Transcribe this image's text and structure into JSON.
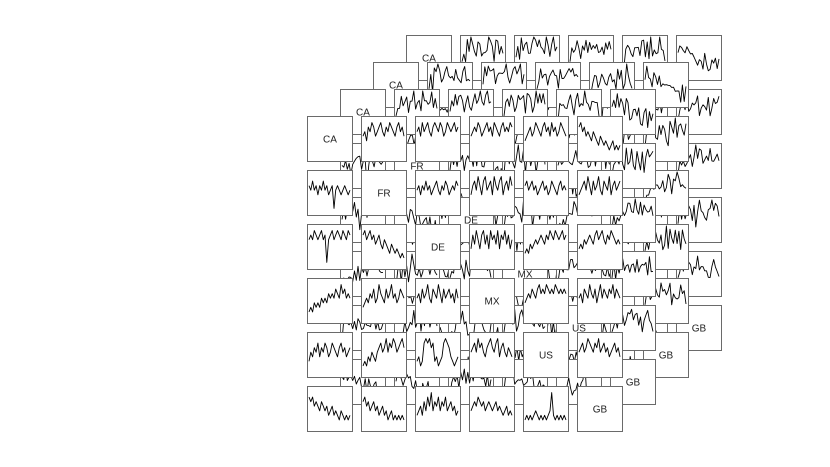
{
  "chart_data": {
    "type": "scatter-matrix",
    "description_layers": 4,
    "variables": [
      "CA",
      "FR",
      "DE",
      "MX",
      "US",
      "GB"
    ],
    "title": "",
    "xlabel": "",
    "ylabel": "",
    "grid": false,
    "legend": "none",
    "panels": {
      "CA-FR": [
        6,
        7,
        5,
        8,
        7,
        9,
        8,
        6,
        7,
        8,
        9,
        7,
        6,
        8,
        7,
        9,
        8,
        7,
        6,
        8,
        9,
        7,
        8,
        6
      ],
      "CA-DE": [
        7,
        8,
        6,
        9,
        7,
        8,
        9,
        7,
        6,
        8,
        9,
        8,
        7,
        9,
        8,
        6,
        7,
        9,
        8,
        7,
        8,
        9,
        7,
        8
      ],
      "CA-MX": [
        6,
        7,
        8,
        7,
        9,
        8,
        6,
        7,
        8,
        9,
        7,
        8,
        6,
        9,
        8,
        7,
        6,
        8,
        9,
        7,
        8,
        7,
        9,
        8
      ],
      "CA-US": [
        5,
        6,
        7,
        8,
        6,
        7,
        9,
        8,
        7,
        6,
        8,
        9,
        7,
        8,
        6,
        9,
        7,
        8,
        6,
        7,
        9,
        8,
        7,
        6
      ],
      "CA-GB": [
        8,
        9,
        7,
        8,
        6,
        7,
        6,
        5,
        7,
        6,
        5,
        4,
        6,
        5,
        4,
        5,
        4,
        3,
        4,
        5,
        3,
        4,
        3,
        4
      ],
      "FR-CA": [
        7,
        6,
        8,
        6,
        7,
        5,
        7,
        6,
        8,
        6,
        7,
        5,
        6,
        7,
        2,
        6,
        7,
        6,
        5,
        6,
        7,
        6,
        5,
        6
      ],
      "FR-DE": [
        6,
        7,
        5,
        7,
        6,
        8,
        6,
        7,
        5,
        6,
        7,
        8,
        6,
        5,
        7,
        6,
        8,
        7,
        5,
        6,
        7,
        6,
        8,
        7
      ],
      "FR-MX": [
        5,
        7,
        8,
        6,
        9,
        7,
        5,
        8,
        9,
        6,
        7,
        8,
        5,
        9,
        7,
        6,
        8,
        9,
        5,
        7,
        8,
        6,
        9,
        7
      ],
      "FR-US": [
        7,
        8,
        6,
        7,
        8,
        6,
        7,
        5,
        6,
        7,
        8,
        6,
        7,
        5,
        6,
        8,
        7,
        6,
        5,
        7,
        8,
        6,
        7,
        6
      ],
      "FR-GB": [
        5,
        6,
        7,
        8,
        6,
        9,
        7,
        5,
        8,
        6,
        7,
        9,
        6,
        5,
        8,
        7,
        6,
        9,
        5,
        7,
        8,
        6,
        7,
        8
      ],
      "DE-CA": [
        7,
        8,
        7,
        9,
        8,
        7,
        8,
        9,
        7,
        8,
        2,
        7,
        8,
        9,
        7,
        8,
        9,
        8,
        7,
        9,
        8,
        7,
        9,
        8
      ],
      "DE-FR": [
        8,
        9,
        7,
        8,
        9,
        7,
        8,
        6,
        7,
        8,
        6,
        5,
        7,
        6,
        5,
        4,
        6,
        5,
        4,
        5,
        4,
        3,
        4,
        3
      ],
      "DE-MX": [
        5,
        8,
        6,
        9,
        7,
        5,
        8,
        9,
        6,
        8,
        5,
        9,
        7,
        8,
        6,
        9,
        5,
        8,
        7,
        9,
        6,
        8,
        5,
        7
      ],
      "DE-US": [
        4,
        5,
        4,
        6,
        5,
        6,
        7,
        6,
        7,
        8,
        7,
        6,
        8,
        7,
        9,
        8,
        7,
        9,
        8,
        7,
        8,
        9,
        7,
        8
      ],
      "DE-GB": [
        5,
        6,
        5,
        7,
        6,
        7,
        8,
        7,
        6,
        8,
        9,
        7,
        8,
        9,
        7,
        6,
        8,
        7,
        9,
        8,
        7,
        6,
        7,
        6
      ],
      "MX-CA": [
        3,
        4,
        3,
        5,
        4,
        5,
        4,
        6,
        5,
        6,
        5,
        7,
        6,
        7,
        6,
        8,
        7,
        6,
        9,
        7,
        8,
        6,
        7,
        6
      ],
      "MX-FR": [
        4,
        5,
        6,
        5,
        7,
        6,
        8,
        5,
        6,
        9,
        7,
        6,
        5,
        8,
        6,
        7,
        9,
        6,
        7,
        5,
        6,
        8,
        7,
        6
      ],
      "MX-DE": [
        6,
        7,
        5,
        8,
        6,
        7,
        9,
        6,
        5,
        8,
        7,
        6,
        9,
        7,
        5,
        8,
        6,
        7,
        8,
        6,
        7,
        5,
        8,
        6
      ],
      "MX-US": [
        5,
        6,
        7,
        6,
        8,
        7,
        6,
        8,
        9,
        7,
        8,
        7,
        9,
        8,
        7,
        8,
        7,
        9,
        8,
        7,
        8,
        7,
        8,
        7
      ],
      "MX-GB": [
        6,
        7,
        5,
        8,
        7,
        6,
        9,
        7,
        6,
        8,
        5,
        7,
        9,
        6,
        8,
        7,
        6,
        8,
        7,
        9,
        6,
        8,
        7,
        6
      ],
      "US-CA": [
        4,
        6,
        5,
        7,
        6,
        8,
        5,
        7,
        6,
        8,
        7,
        5,
        6,
        8,
        7,
        6,
        5,
        7,
        8,
        6,
        7,
        5,
        6,
        7
      ],
      "US-FR": [
        3,
        4,
        3,
        5,
        4,
        6,
        5,
        4,
        6,
        7,
        8,
        6,
        7,
        9,
        6,
        8,
        7,
        9,
        8,
        6,
        7,
        8,
        9,
        7
      ],
      "US-DE": [
        4,
        5,
        3,
        4,
        8,
        9,
        8,
        9,
        7,
        8,
        4,
        5,
        3,
        4,
        5,
        8,
        9,
        8,
        7,
        5,
        4,
        3,
        4,
        5
      ],
      "US-MX": [
        6,
        7,
        8,
        6,
        9,
        7,
        8,
        6,
        5,
        7,
        8,
        9,
        7,
        6,
        8,
        9,
        5,
        7,
        8,
        6,
        5,
        7,
        6,
        5
      ],
      "US-GB": [
        6,
        7,
        8,
        6,
        7,
        9,
        8,
        7,
        6,
        8,
        7,
        9,
        6,
        7,
        8,
        6,
        7,
        5,
        6,
        7,
        8,
        6,
        7,
        5
      ],
      "GB-CA": [
        8,
        7,
        8,
        6,
        7,
        6,
        5,
        7,
        6,
        5,
        6,
        4,
        5,
        6,
        4,
        5,
        4,
        3,
        5,
        4,
        3,
        4,
        3,
        4
      ],
      "GB-FR": [
        7,
        8,
        6,
        7,
        5,
        6,
        7,
        5,
        6,
        4,
        5,
        6,
        4,
        5,
        3,
        4,
        5,
        3,
        4,
        3,
        4,
        3,
        4,
        3
      ],
      "GB-DE": [
        4,
        5,
        6,
        4,
        7,
        5,
        8,
        6,
        9,
        5,
        7,
        6,
        8,
        5,
        7,
        6,
        8,
        5,
        6,
        7,
        5,
        6,
        4,
        5
      ],
      "GB-MX": [
        5,
        6,
        7,
        6,
        8,
        7,
        6,
        7,
        5,
        6,
        7,
        6,
        5,
        6,
        7,
        5,
        6,
        5,
        4,
        5,
        6,
        4,
        5,
        4
      ],
      "GB-US": [
        3,
        4,
        3,
        4,
        3,
        4,
        5,
        4,
        3,
        4,
        3,
        4,
        3,
        4,
        5,
        9,
        4,
        3,
        4,
        3,
        4,
        3,
        4,
        3
      ]
    }
  }
}
